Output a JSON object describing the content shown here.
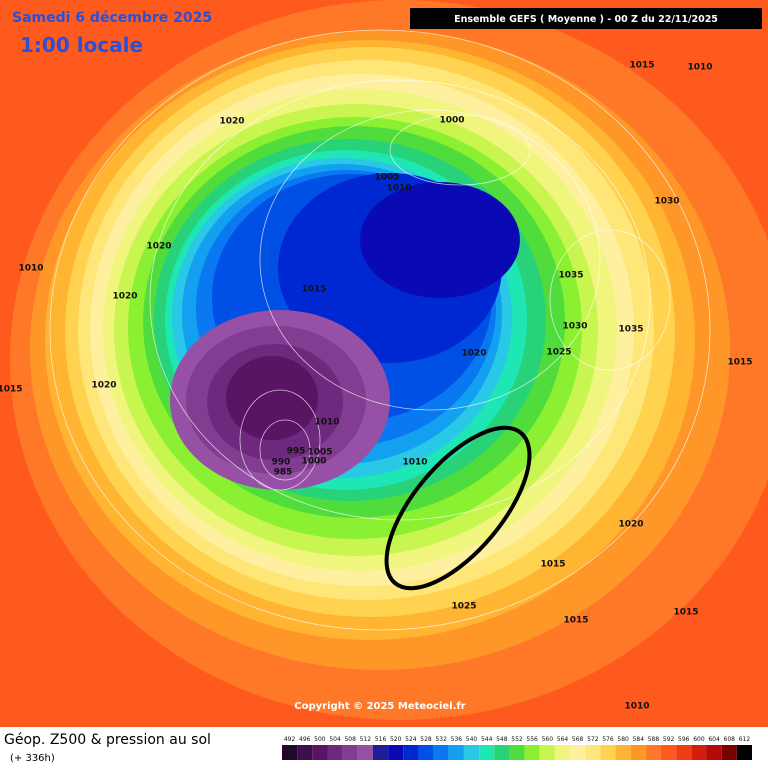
{
  "header": {
    "date": "Samedi 6 décembre 2025",
    "time": "1:00 locale",
    "run": "Ensemble GEFS  ( Moyenne )  -  00 Z du 22/11/2025"
  },
  "isobars": [
    1015,
    1010,
    1020,
    1000,
    1005,
    1010,
    1030,
    1020,
    1010,
    1035,
    1015,
    1020,
    1030,
    1035,
    1020,
    1025,
    1015,
    1020,
    1015,
    1010,
    995,
    1005,
    1000,
    990,
    985,
    1010,
    1020,
    1015,
    1025,
    1015,
    1015,
    1010
  ],
  "copyright": "Copyright © 2025 Meteociel.fr",
  "legend": {
    "title": "Géop. Z500 & pression au sol",
    "lead": "(+ 336h)",
    "scale_labels": [
      492,
      496,
      500,
      504,
      508,
      512,
      516,
      520,
      524,
      528,
      532,
      536,
      540,
      544,
      548,
      552,
      556,
      560,
      564,
      568,
      572,
      576,
      580,
      584,
      588,
      592,
      596,
      600,
      604,
      608,
      612
    ],
    "scale_colors": [
      "#1e0a28",
      "#3c0f4b",
      "#5a1464",
      "#6e287d",
      "#823c91",
      "#9650a5",
      "#1e1e96",
      "#0a0ab4",
      "#0028d2",
      "#0050e6",
      "#0a78f0",
      "#14a0f0",
      "#28c8e6",
      "#1ee6b4",
      "#28d278",
      "#50dc3c",
      "#8cf032",
      "#c8f550",
      "#f0f57d",
      "#fff0a0",
      "#ffe678",
      "#ffd250",
      "#ffb432",
      "#ff9628",
      "#ff7828",
      "#ff5a1e",
      "#f03c14",
      "#d21e0a",
      "#b40a0a",
      "#780000",
      "#000000"
    ]
  }
}
